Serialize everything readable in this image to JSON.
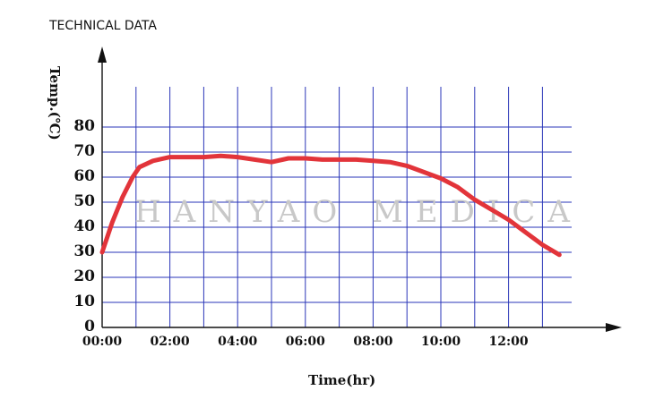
{
  "chart_data": {
    "type": "line",
    "title": "TECHNICAL DATA",
    "xlabel": "Time(hr)",
    "ylabel": "Temp.(℃)",
    "watermark": "HANYAO MEDICA",
    "x_tick_labels": [
      "00:00",
      "02:00",
      "04:00",
      "06:00",
      "08:00",
      "10:00",
      "12:00"
    ],
    "y_tick_labels": [
      "0",
      "10",
      "20",
      "30",
      "40",
      "50",
      "60",
      "70",
      "80"
    ],
    "xlim": [
      0,
      13.6
    ],
    "ylim": [
      0,
      80
    ],
    "grid": true,
    "x_grid_step_hours": 1,
    "y_grid_step": 10,
    "colors": {
      "line": "#e2343a",
      "grid": "#2a36b8",
      "axis": "#111111",
      "watermark": "#c8c8c8"
    },
    "series": [
      {
        "x": [
          0,
          0.3,
          0.6,
          0.9,
          1.1,
          1.5,
          2.0,
          2.5,
          3.0,
          3.5,
          4.0,
          4.5,
          5.0,
          5.5,
          6.0,
          6.5,
          7.0,
          7.5,
          8.0,
          8.5,
          9.0,
          9.5,
          10.0,
          10.5,
          11.0,
          11.5,
          12.0,
          12.5,
          13.0,
          13.5
        ],
        "y": [
          30,
          42,
          52,
          60,
          64,
          66.5,
          68,
          68,
          68,
          68.5,
          68,
          67,
          66,
          67.5,
          67.5,
          67,
          67,
          67,
          66.5,
          66,
          64.5,
          62,
          59.5,
          56,
          51,
          47,
          43,
          38,
          33,
          29
        ]
      }
    ]
  }
}
